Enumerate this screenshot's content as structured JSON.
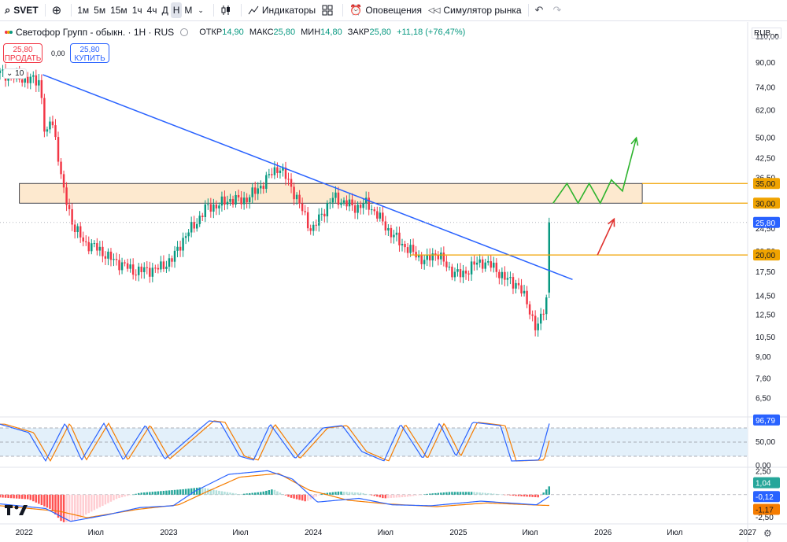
{
  "toolbar": {
    "symbol": "SVET",
    "timeframes": [
      "1м",
      "5м",
      "15м",
      "1ч",
      "4ч",
      "Д",
      "Н",
      "М"
    ],
    "active_timeframe": "Н",
    "indicators_label": "Индикаторы",
    "alerts_label": "Оповещения",
    "replay_label": "Симулятор рынка"
  },
  "legend": {
    "title": "Светофор Групп - обыкн. · 1Н · RUS",
    "open_label": "ОТКР",
    "open": "14,90",
    "high_label": "МАКС",
    "high": "25,80",
    "low_label": "МИН",
    "low": "14,80",
    "close_label": "ЗАКР",
    "close": "25,80",
    "change": "+11,18 (+76,47%)"
  },
  "trade": {
    "sell_price": "25,80",
    "sell_label": "ПРОДАТЬ",
    "spread": "0,00",
    "buy_price": "25,80",
    "buy_label": "КУПИТЬ"
  },
  "collapse_count": "10",
  "currency": "RUB",
  "colors": {
    "up": "#089981",
    "down": "#f23645",
    "trendline": "#2962ff",
    "zone_fill": "#fde9cf",
    "level": "#f0a300",
    "price_label": "#2962ff",
    "projection_green": "#2db32d",
    "projection_red": "#e0322f",
    "stoch_k": "#2962ff",
    "stoch_d": "#f57c00",
    "stoch_band": "#e3f0fa"
  },
  "chart_data": [
    {
      "type": "candlestick",
      "title": "Светофор Групп - обыкн. · 1Н · RUS",
      "y_scale": "log",
      "ylim": [
        5.7,
        115
      ],
      "y_ticks": [
        "110,00",
        "90,00",
        "74,00",
        "62,00",
        "50,00",
        "42,50",
        "36,50",
        "30,00",
        "24,50",
        "20,50",
        "17,50",
        "14,50",
        "12,50",
        "10,50",
        "9,00",
        "7,60",
        "6,50"
      ],
      "x_ticks": [
        "2022",
        "Июл",
        "2023",
        "Июл",
        "2024",
        "Июл",
        "2025",
        "Июл",
        "2026",
        "Июл",
        "2027"
      ],
      "close_path": [
        [
          "2021-11-01",
          83
        ],
        [
          "2021-12-15",
          80
        ],
        [
          "2022-02-10",
          78
        ],
        [
          "2022-02-24",
          47
        ],
        [
          "2022-03-10",
          60
        ],
        [
          "2022-04-07",
          34
        ],
        [
          "2022-05-05",
          25
        ],
        [
          "2022-06-02",
          22
        ],
        [
          "2022-07-07",
          21
        ],
        [
          "2022-08-04",
          19.5
        ],
        [
          "2022-09-08",
          18.5
        ],
        [
          "2022-10-06",
          17.6
        ],
        [
          "2022-11-10",
          17.8
        ],
        [
          "2022-12-08",
          18
        ],
        [
          "2023-01-12",
          19.5
        ],
        [
          "2023-02-09",
          23
        ],
        [
          "2023-03-09",
          25.5
        ],
        [
          "2023-04-06",
          29
        ],
        [
          "2023-05-04",
          29.5
        ],
        [
          "2023-06-08",
          31
        ],
        [
          "2023-07-06",
          30.5
        ],
        [
          "2023-08-10",
          33
        ],
        [
          "2023-09-07",
          36.5
        ],
        [
          "2023-10-05",
          40
        ],
        [
          "2023-11-02",
          35
        ],
        [
          "2023-11-30",
          29
        ],
        [
          "2023-12-28",
          24
        ],
        [
          "2024-01-25",
          28
        ],
        [
          "2024-02-22",
          31.5
        ],
        [
          "2024-03-21",
          30
        ],
        [
          "2024-04-18",
          29
        ],
        [
          "2024-05-16",
          30
        ],
        [
          "2024-06-13",
          27
        ],
        [
          "2024-07-11",
          24
        ],
        [
          "2024-08-08",
          22
        ],
        [
          "2024-09-05",
          20.5
        ],
        [
          "2024-10-10",
          19
        ],
        [
          "2024-11-07",
          20.5
        ],
        [
          "2024-12-05",
          18
        ],
        [
          "2025-01-09",
          17
        ],
        [
          "2025-02-06",
          18.5
        ],
        [
          "2025-03-06",
          19
        ],
        [
          "2025-04-03",
          18
        ],
        [
          "2025-05-01",
          16.5
        ],
        [
          "2025-05-29",
          16
        ],
        [
          "2025-06-26",
          13.5
        ],
        [
          "2025-07-17",
          11
        ],
        [
          "2025-07-31",
          12.5
        ],
        [
          "2025-08-14",
          14.8
        ],
        [
          "2025-08-21",
          25.8
        ]
      ],
      "trendline": [
        [
          "2022-02-17",
          82
        ],
        [
          "2025-10-16",
          16.5
        ]
      ],
      "zone": {
        "from": "2021-12-20",
        "to": "2026-04-10",
        "low": 30.0,
        "high": 35.0
      },
      "levels": [
        {
          "value": 35.0,
          "label": "35,00"
        },
        {
          "value": 30.0,
          "label": "30,00"
        },
        {
          "value": 20.0,
          "label": "20,00",
          "from": "2024-09-01"
        }
      ],
      "last_price": {
        "value": 25.8,
        "label": "25,80"
      },
      "projection_green": [
        [
          "2025-08-28",
          30
        ],
        [
          "2025-10-02",
          35
        ],
        [
          "2025-10-30",
          30
        ],
        [
          "2025-11-27",
          35
        ],
        [
          "2025-12-25",
          30
        ],
        [
          "2026-01-22",
          36
        ],
        [
          "2026-02-19",
          33
        ],
        [
          "2026-03-26",
          50
        ]
      ],
      "projection_red": [
        [
          "2025-12-18",
          20
        ],
        [
          "2026-01-29",
          26.5
        ]
      ]
    },
    {
      "type": "line",
      "name": "Stochastic",
      "ylim": [
        0,
        100
      ],
      "band": [
        20,
        80
      ],
      "y_ticks": [
        "50,00",
        "0,00"
      ],
      "k_label": "96,79",
      "turning_points": [
        [
          "2021-11-01",
          88
        ],
        [
          "2022-01-13",
          70
        ],
        [
          "2022-02-24",
          10
        ],
        [
          "2022-04-14",
          90
        ],
        [
          "2022-05-26",
          12
        ],
        [
          "2022-07-21",
          90
        ],
        [
          "2022-09-08",
          12
        ],
        [
          "2022-11-03",
          86
        ],
        [
          "2022-12-22",
          14
        ],
        [
          "2023-04-13",
          95
        ],
        [
          "2023-05-11",
          92
        ],
        [
          "2023-06-29",
          20
        ],
        [
          "2023-08-03",
          12
        ],
        [
          "2023-09-14",
          88
        ],
        [
          "2023-11-16",
          15
        ],
        [
          "2024-01-25",
          80
        ],
        [
          "2024-03-14",
          85
        ],
        [
          "2024-05-02",
          30
        ],
        [
          "2024-06-27",
          10
        ],
        [
          "2024-08-08",
          88
        ],
        [
          "2024-10-03",
          15
        ],
        [
          "2024-11-14",
          90
        ],
        [
          "2024-12-26",
          20
        ],
        [
          "2025-02-06",
          92
        ],
        [
          "2025-04-17",
          85
        ],
        [
          "2025-05-15",
          10
        ],
        [
          "2025-07-24",
          12
        ],
        [
          "2025-08-21",
          97
        ]
      ]
    },
    {
      "type": "histogram",
      "name": "MACD",
      "ylim": [
        -3.0,
        2.8
      ],
      "y_ticks": [
        "2,50",
        "-2,50"
      ],
      "labels": {
        "histogram": "1,04",
        "macd": "-0,12",
        "signal": "-1,17"
      },
      "histogram": [
        [
          "2021-11-01",
          -0.3
        ],
        [
          "2022-01-13",
          -0.5
        ],
        [
          "2022-03-10",
          -1.6
        ],
        [
          "2022-04-07",
          -3.0
        ],
        [
          "2022-05-05",
          -2.9
        ],
        [
          "2022-06-30",
          -1.6
        ],
        [
          "2022-08-25",
          -0.4
        ],
        [
          "2022-10-20",
          0.2
        ],
        [
          "2022-12-15",
          0.4
        ],
        [
          "2023-02-09",
          0.6
        ],
        [
          "2023-03-23",
          0.8
        ],
        [
          "2023-05-04",
          0.45
        ],
        [
          "2023-06-29",
          0.05
        ],
        [
          "2023-08-24",
          0.3
        ],
        [
          "2023-09-21",
          0.6
        ],
        [
          "2023-11-02",
          -0.3
        ],
        [
          "2023-12-14",
          -0.75
        ],
        [
          "2024-01-25",
          0.15
        ],
        [
          "2024-03-07",
          0.35
        ],
        [
          "2024-05-02",
          0.2
        ],
        [
          "2024-06-27",
          -0.4
        ],
        [
          "2024-08-22",
          -0.25
        ],
        [
          "2024-10-17",
          0.1
        ],
        [
          "2024-12-12",
          0.3
        ],
        [
          "2025-02-06",
          0.3
        ],
        [
          "2025-04-03",
          0.1
        ],
        [
          "2025-05-29",
          -0.15
        ],
        [
          "2025-07-24",
          -0.3
        ],
        [
          "2025-08-21",
          1.04
        ]
      ],
      "macd": [
        [
          "2021-11-01",
          -1.0
        ],
        [
          "2022-02-24",
          -1.5
        ],
        [
          "2022-04-28",
          -2.9
        ],
        [
          "2022-07-28",
          -2.2
        ],
        [
          "2022-10-20",
          -1.4
        ],
        [
          "2023-01-12",
          -1.2
        ],
        [
          "2023-03-09",
          0.4
        ],
        [
          "2023-06-01",
          2.2
        ],
        [
          "2023-09-07",
          2.6
        ],
        [
          "2023-11-09",
          1.7
        ],
        [
          "2024-01-11",
          -0.8
        ],
        [
          "2024-04-25",
          -0.4
        ],
        [
          "2024-07-18",
          -1.1
        ],
        [
          "2024-10-24",
          -1.2
        ],
        [
          "2025-02-27",
          -0.7
        ],
        [
          "2025-07-17",
          -1.1
        ],
        [
          "2025-08-21",
          -0.12
        ]
      ],
      "signal": [
        [
          "2021-11-01",
          -1.2
        ],
        [
          "2022-03-31",
          -1.8
        ],
        [
          "2022-06-09",
          -2.5
        ],
        [
          "2022-10-13",
          -1.6
        ],
        [
          "2023-01-26",
          -1.1
        ],
        [
          "2023-04-06",
          0.3
        ],
        [
          "2023-06-29",
          1.9
        ],
        [
          "2023-10-05",
          2.3
        ],
        [
          "2023-12-21",
          0.5
        ],
        [
          "2024-03-28",
          -0.6
        ],
        [
          "2024-07-04",
          -1.0
        ],
        [
          "2024-11-07",
          -1.3
        ],
        [
          "2025-03-13",
          -0.9
        ],
        [
          "2025-07-31",
          -1.15
        ],
        [
          "2025-08-21",
          -1.17
        ]
      ]
    }
  ]
}
